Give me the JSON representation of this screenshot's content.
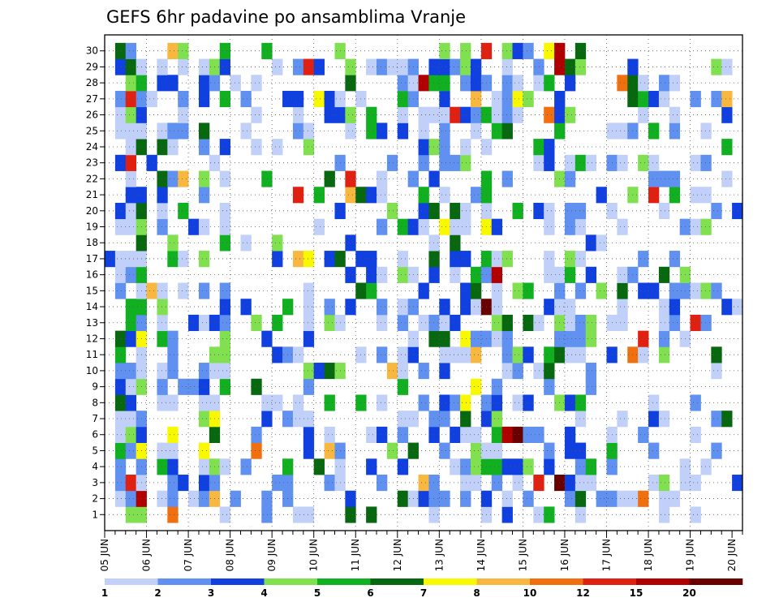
{
  "chart_data": {
    "type": "heatmap",
    "title": "GEFS 6hr padavine po ansamblima Vranje",
    "xlabel": "",
    "ylabel": "",
    "x_tick_labels": [
      "05 JUN",
      "06 JUN",
      "07 JUN",
      "08 JUN",
      "09 JUN",
      "10 JUN",
      "11 JUN",
      "12 JUN",
      "13 JUN",
      "14 JUN",
      "15 JUN",
      "16 JUN",
      "17 JUN",
      "18 JUN",
      "19 JUN",
      "20 JUN"
    ],
    "y_tick_labels": [
      "1",
      "2",
      "3",
      "4",
      "5",
      "6",
      "7",
      "8",
      "9",
      "10",
      "11",
      "12",
      "13",
      "14",
      "15",
      "16",
      "17",
      "18",
      "19",
      "20",
      "21",
      "22",
      "23",
      "24",
      "25",
      "26",
      "27",
      "28",
      "29",
      "30"
    ],
    "members": 30,
    "time_steps": 61,
    "grid": true,
    "legend_placement": "bottom",
    "legend_labels": [
      "1",
      "2",
      "3",
      "4",
      "5",
      "6",
      "7",
      "8",
      "10",
      "12",
      "15",
      "20"
    ],
    "colors": [
      "#c0d0f8",
      "#6090f0",
      "#1040e0",
      "#80e050",
      "#10b020",
      "#086810",
      "#f8f800",
      "#f8b840",
      "#f07010",
      "#e02010",
      "#b00000",
      "#680000"
    ],
    "sample_cells": [
      {
        "member": 30,
        "step": 6,
        "class": 7
      },
      {
        "member": 30,
        "step": 22,
        "class": 3
      },
      {
        "member": 30,
        "step": 42,
        "class": 6
      },
      {
        "member": 30,
        "step": 43,
        "class": 10
      },
      {
        "member": 29,
        "step": 43,
        "class": 10
      },
      {
        "member": 28,
        "step": 30,
        "class": 10
      },
      {
        "member": 27,
        "step": 20,
        "class": 6
      },
      {
        "member": 16,
        "step": 37,
        "class": 10
      },
      {
        "member": 14,
        "step": 36,
        "class": 11
      },
      {
        "member": 6,
        "step": 38,
        "class": 10
      },
      {
        "member": 6,
        "step": 39,
        "class": 11
      },
      {
        "member": 3,
        "step": 43,
        "class": 11
      },
      {
        "member": 2,
        "step": 3,
        "class": 10
      },
      {
        "member": 1,
        "step": 3,
        "class": 3
      }
    ]
  }
}
